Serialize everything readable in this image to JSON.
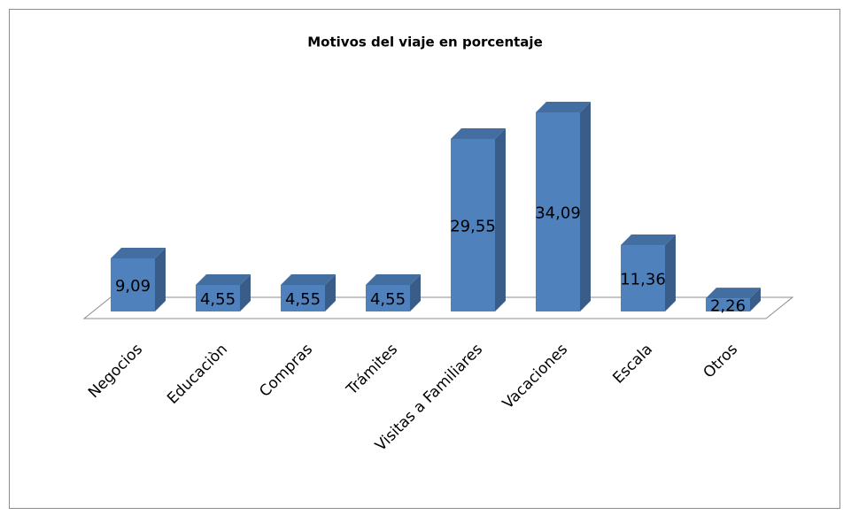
{
  "chart_data": {
    "type": "bar3d",
    "title": "Motivos del viaje en porcentaje",
    "categories": [
      "Negocios",
      "Educaciòn",
      "Compras",
      "Trámites",
      "Visitas a Familiares",
      "Vacaciones",
      "Escala",
      "Otros"
    ],
    "values": [
      9.09,
      4.55,
      4.55,
      4.55,
      29.55,
      34.09,
      11.36,
      2.26
    ],
    "value_labels": [
      "9,09",
      "4,55",
      "4,55",
      "4,55",
      "29,55",
      "34,09",
      "11,36",
      "2,26"
    ],
    "color": "#4f81bd"
  }
}
